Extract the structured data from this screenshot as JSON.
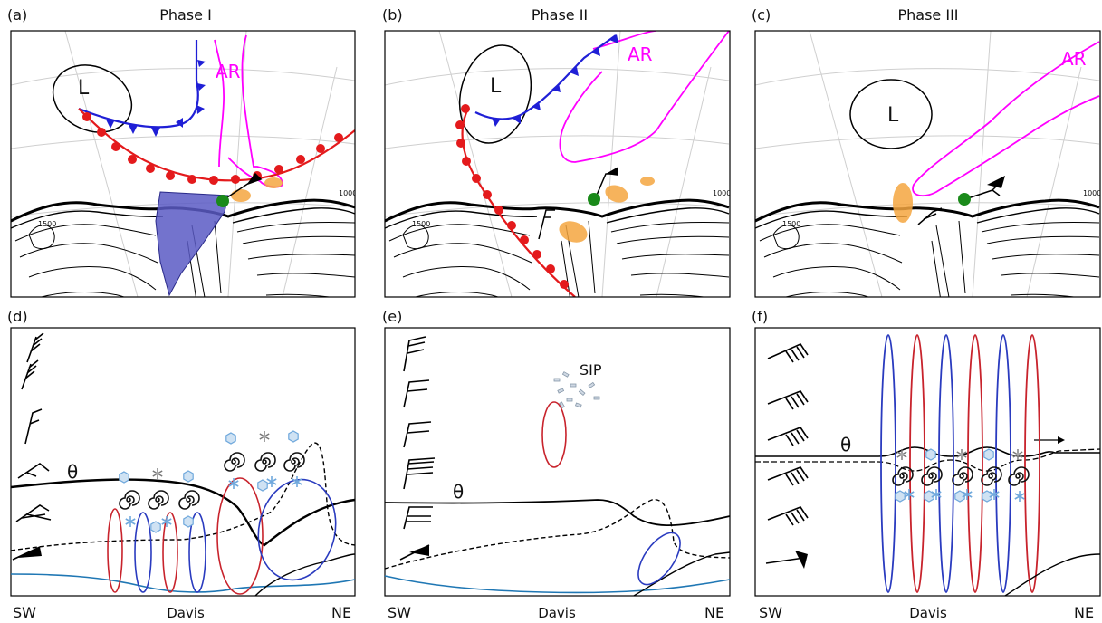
{
  "panels": {
    "a": {
      "letter": "(a)",
      "title": "Phase I"
    },
    "b": {
      "letter": "(b)",
      "title": "Phase II"
    },
    "c": {
      "letter": "(c)",
      "title": "Phase III"
    },
    "d": {
      "letter": "(d)"
    },
    "e": {
      "letter": "(e)"
    },
    "f": {
      "letter": "(f)"
    }
  },
  "map_labels": {
    "low": "L",
    "atmospheric_river": "AR",
    "contour_1500": "1500",
    "contour_1000": "1000"
  },
  "section_labels": {
    "theta": "θ",
    "sip": "SIP",
    "left_end": "SW",
    "station": "Davis",
    "right_end": "NE"
  },
  "colors": {
    "cold_front": "#1f1fd6",
    "warm_front": "#e41a1c",
    "atmospheric_river": "#ff00ff",
    "ice_shelf": "#5b5bc4",
    "cloud_patch": "#f4a640",
    "station_marker": "#1a8a1a",
    "circulation_blue": "#2a3bbf",
    "circulation_red": "#c8232c",
    "surface_line": "#1f77b4",
    "ice_crystal": "#6fa8dc"
  }
}
